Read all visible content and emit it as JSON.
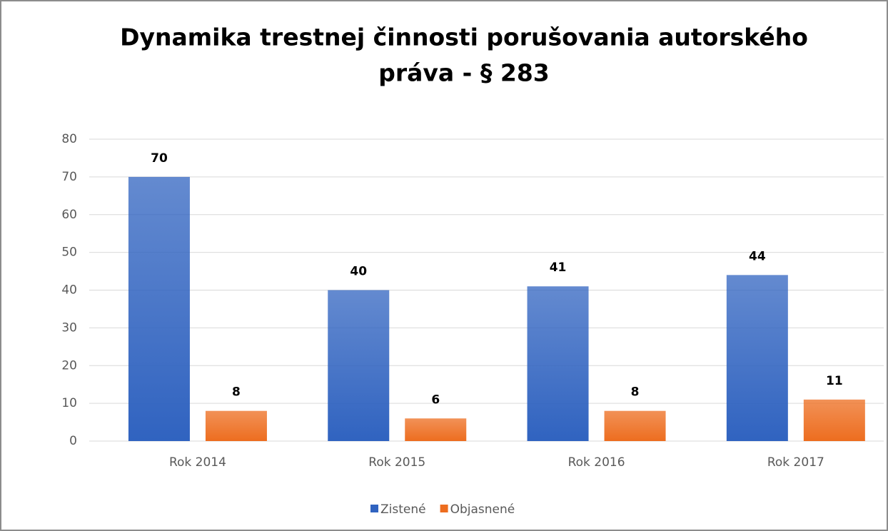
{
  "chart_data": {
    "type": "bar",
    "title": [
      "Dynamika trestnej činnosti porušovania autorského",
      "práva - § 283"
    ],
    "categories": [
      "Rok 2014",
      "Rok 2015",
      "Rok 2016",
      "Rok 2017"
    ],
    "series": [
      {
        "name": "Zistené",
        "color": "#3063c0",
        "values": [
          70,
          40,
          41,
          44
        ]
      },
      {
        "name": "Objasnené",
        "color": "#ed6d1f",
        "values": [
          8,
          6,
          8,
          11
        ]
      }
    ],
    "ylim": [
      0,
      80
    ],
    "yticks": [
      0,
      10,
      20,
      30,
      40,
      50,
      60,
      70,
      80
    ],
    "grid": true,
    "legend": "bottom"
  }
}
